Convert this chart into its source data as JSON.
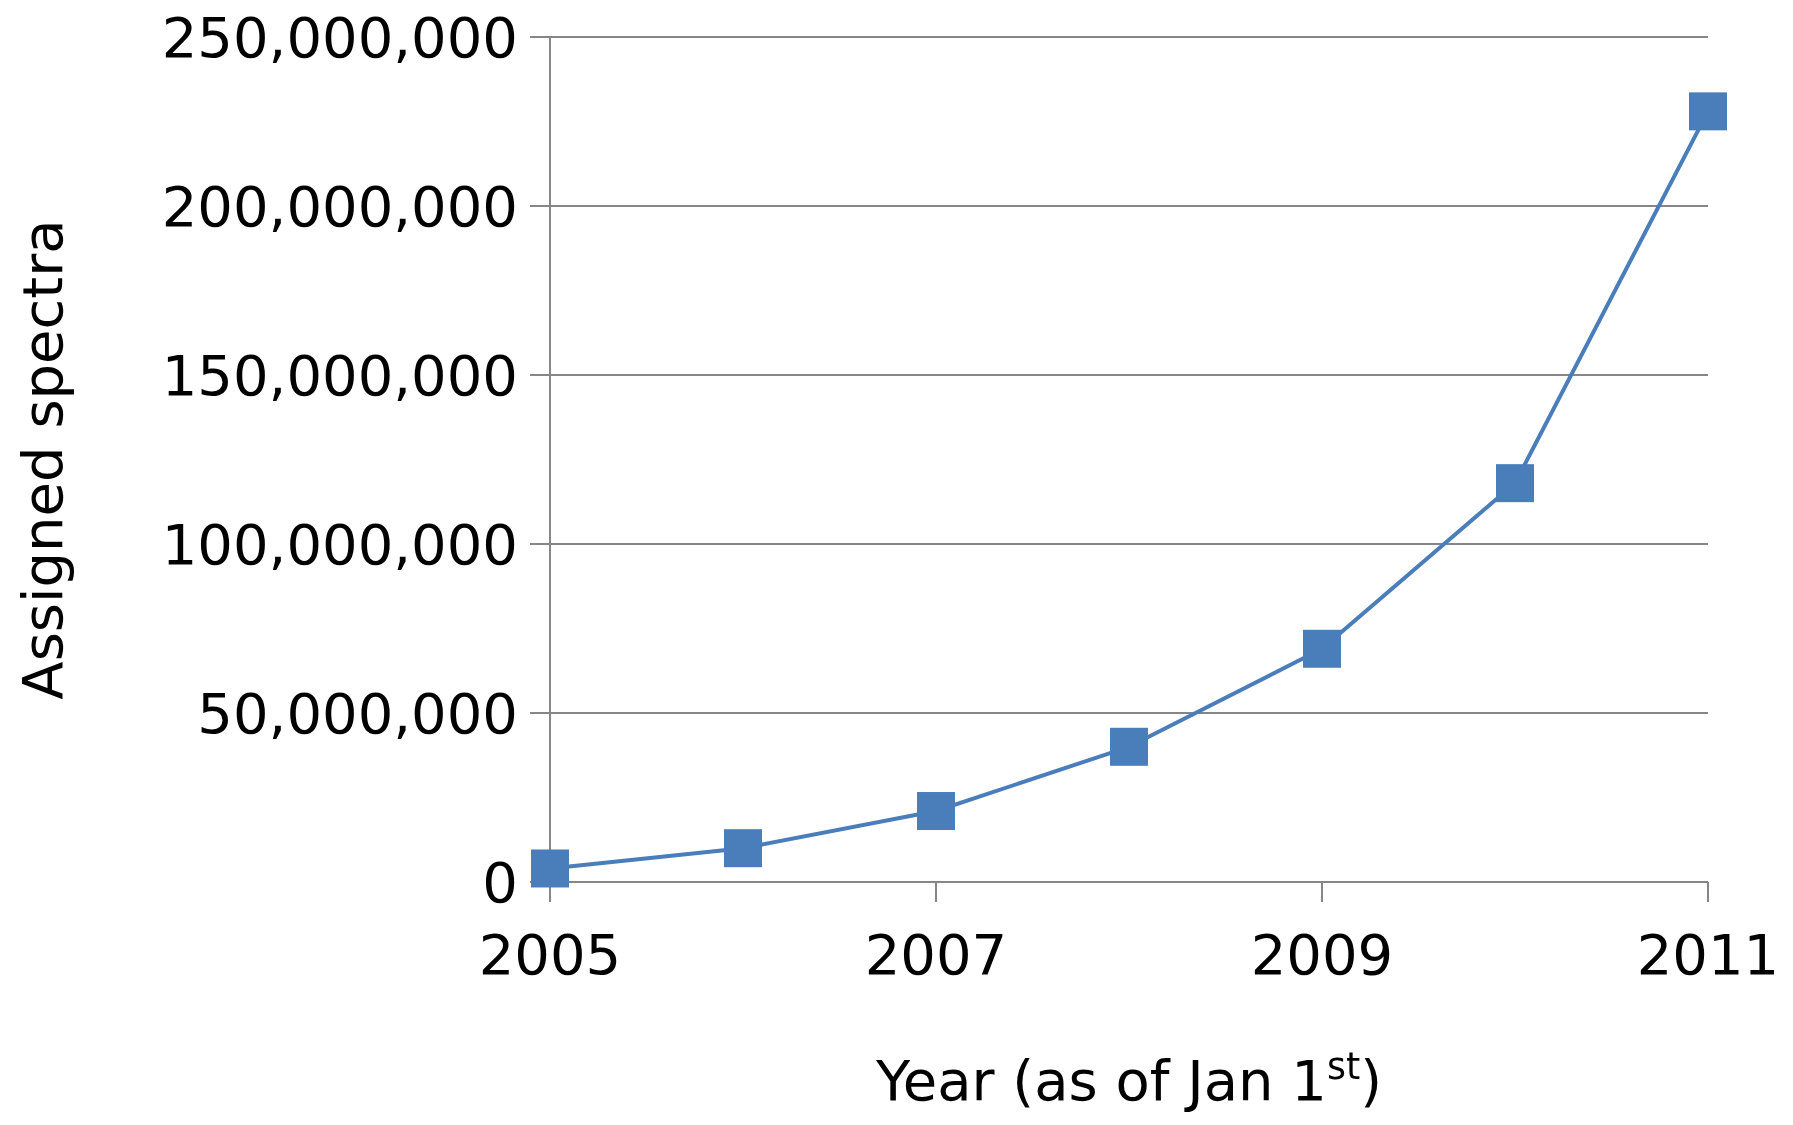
{
  "chart_data": {
    "type": "line",
    "xlabel": "Year (as of Jan 1$^{st}$)",
    "ylabel": "Assigned spectra",
    "x": [
      2005,
      2006,
      2007,
      2008,
      2009,
      2010,
      2011
    ],
    "series": [
      {
        "color": "#4a7ebb",
        "values": [
          4000000,
          10000000,
          21000000,
          40000000,
          69000000,
          118000000,
          228000000
        ]
      }
    ],
    "xlim": [
      2005,
      2011
    ],
    "xticks": [
      2005,
      2007,
      2009,
      2011
    ],
    "ylim": [
      0,
      250000000
    ],
    "yticks": [
      {
        "value": 0,
        "label": "0"
      },
      {
        "value": 50000000,
        "label": "50,000,000"
      },
      {
        "value": 100000000,
        "label": "100,000,000"
      },
      {
        "value": 150000000,
        "label": "150,000,000"
      },
      {
        "value": 200000000,
        "label": "200,000,000"
      },
      {
        "value": 250000000,
        "label": "250,000,000"
      }
    ],
    "grid": "y",
    "marker": "square",
    "line_style": "solid"
  }
}
